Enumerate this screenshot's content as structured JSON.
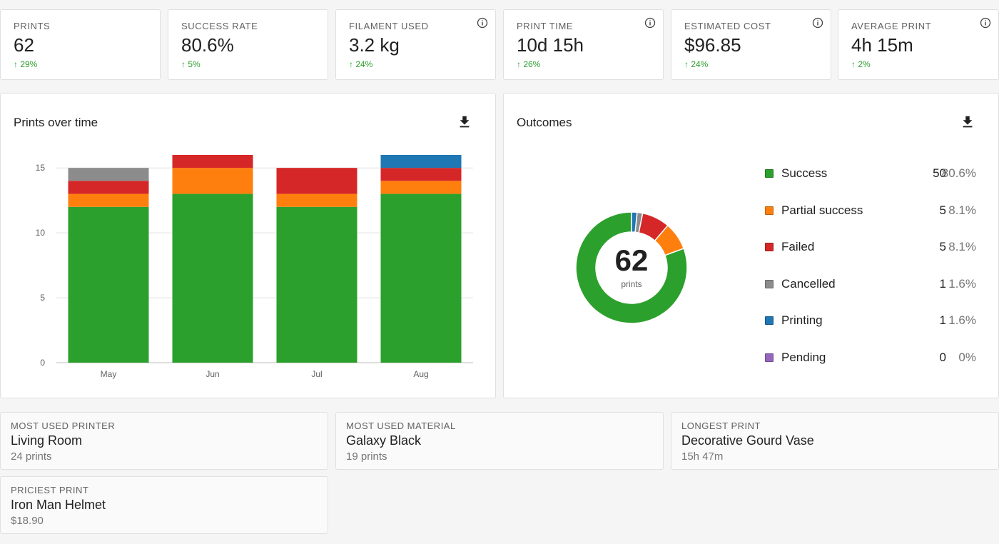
{
  "stats": [
    {
      "label": "PRINTS",
      "value": "62",
      "delta": "↑ 29%",
      "info": false
    },
    {
      "label": "SUCCESS RATE",
      "value": "80.6%",
      "delta": "↑ 5%",
      "info": false
    },
    {
      "label": "FILAMENT USED",
      "value": "3.2 kg",
      "delta": "↑ 24%",
      "info": true
    },
    {
      "label": "PRINT TIME",
      "value": "10d 15h",
      "delta": "↑ 26%",
      "info": true
    },
    {
      "label": "ESTIMATED COST",
      "value": "$96.85",
      "delta": "↑ 24%",
      "info": true
    },
    {
      "label": "AVERAGE PRINT",
      "value": "4h 15m",
      "delta": "↑ 2%",
      "info": true
    }
  ],
  "prints_panel": {
    "title": "Prints over time",
    "download_icon": "download-icon"
  },
  "outcomes_panel": {
    "title": "Outcomes",
    "download_icon": "download-icon",
    "center_value": "62",
    "center_label": "prints",
    "legend": [
      {
        "label": "Success",
        "count": "50",
        "pct": "80.6%",
        "color": "#2ca02c"
      },
      {
        "label": "Partial success",
        "count": "5",
        "pct": "8.1%",
        "color": "#ff7f0e"
      },
      {
        "label": "Failed",
        "count": "5",
        "pct": "8.1%",
        "color": "#d62728"
      },
      {
        "label": "Cancelled",
        "count": "1",
        "pct": "1.6%",
        "color": "#8c8c8c"
      },
      {
        "label": "Printing",
        "count": "1",
        "pct": "1.6%",
        "color": "#1f77b4"
      },
      {
        "label": "Pending",
        "count": "0",
        "pct": "0%",
        "color": "#9467bd"
      }
    ]
  },
  "facts": [
    {
      "label": "MOST USED PRINTER",
      "value": "Living Room",
      "sub": "24 prints"
    },
    {
      "label": "MOST USED MATERIAL",
      "value": "Galaxy Black",
      "sub": "19 prints"
    },
    {
      "label": "LONGEST PRINT",
      "value": "Decorative Gourd Vase",
      "sub": "15h 47m"
    },
    {
      "label": "PRICIEST PRINT",
      "value": "Iron Man Helmet",
      "sub": "$18.90"
    }
  ],
  "chart_data": [
    {
      "type": "bar",
      "stacked": true,
      "title": "Prints over time",
      "categories": [
        "May",
        "Jun",
        "Jul",
        "Aug"
      ],
      "series": [
        {
          "values": [
            12,
            13,
            12,
            13
          ],
          "color": "#2ca02c"
        },
        {
          "values": [
            1,
            2,
            1,
            1
          ],
          "color": "#ff7f0e"
        },
        {
          "values": [
            1,
            1,
            2,
            1
          ],
          "color": "#d62728"
        },
        {
          "values": [
            1,
            0,
            0,
            0
          ],
          "color": "#8c8c8c"
        },
        {
          "values": [
            0,
            0,
            0,
            1
          ],
          "color": "#1f77b4"
        }
      ],
      "yticks": [
        "0",
        "5",
        "10",
        "15"
      ],
      "ylim": [
        0,
        16
      ],
      "grid": true
    },
    {
      "type": "pie",
      "title": "Outcomes",
      "donut": true,
      "labels": [
        "Success",
        "Partial success",
        "Failed",
        "Cancelled",
        "Printing",
        "Pending"
      ],
      "values": [
        50,
        5,
        5,
        1,
        1,
        0
      ],
      "colors": [
        "#2ca02c",
        "#ff7f0e",
        "#d62728",
        "#8c8c8c",
        "#1f77b4",
        "#9467bd"
      ]
    }
  ]
}
